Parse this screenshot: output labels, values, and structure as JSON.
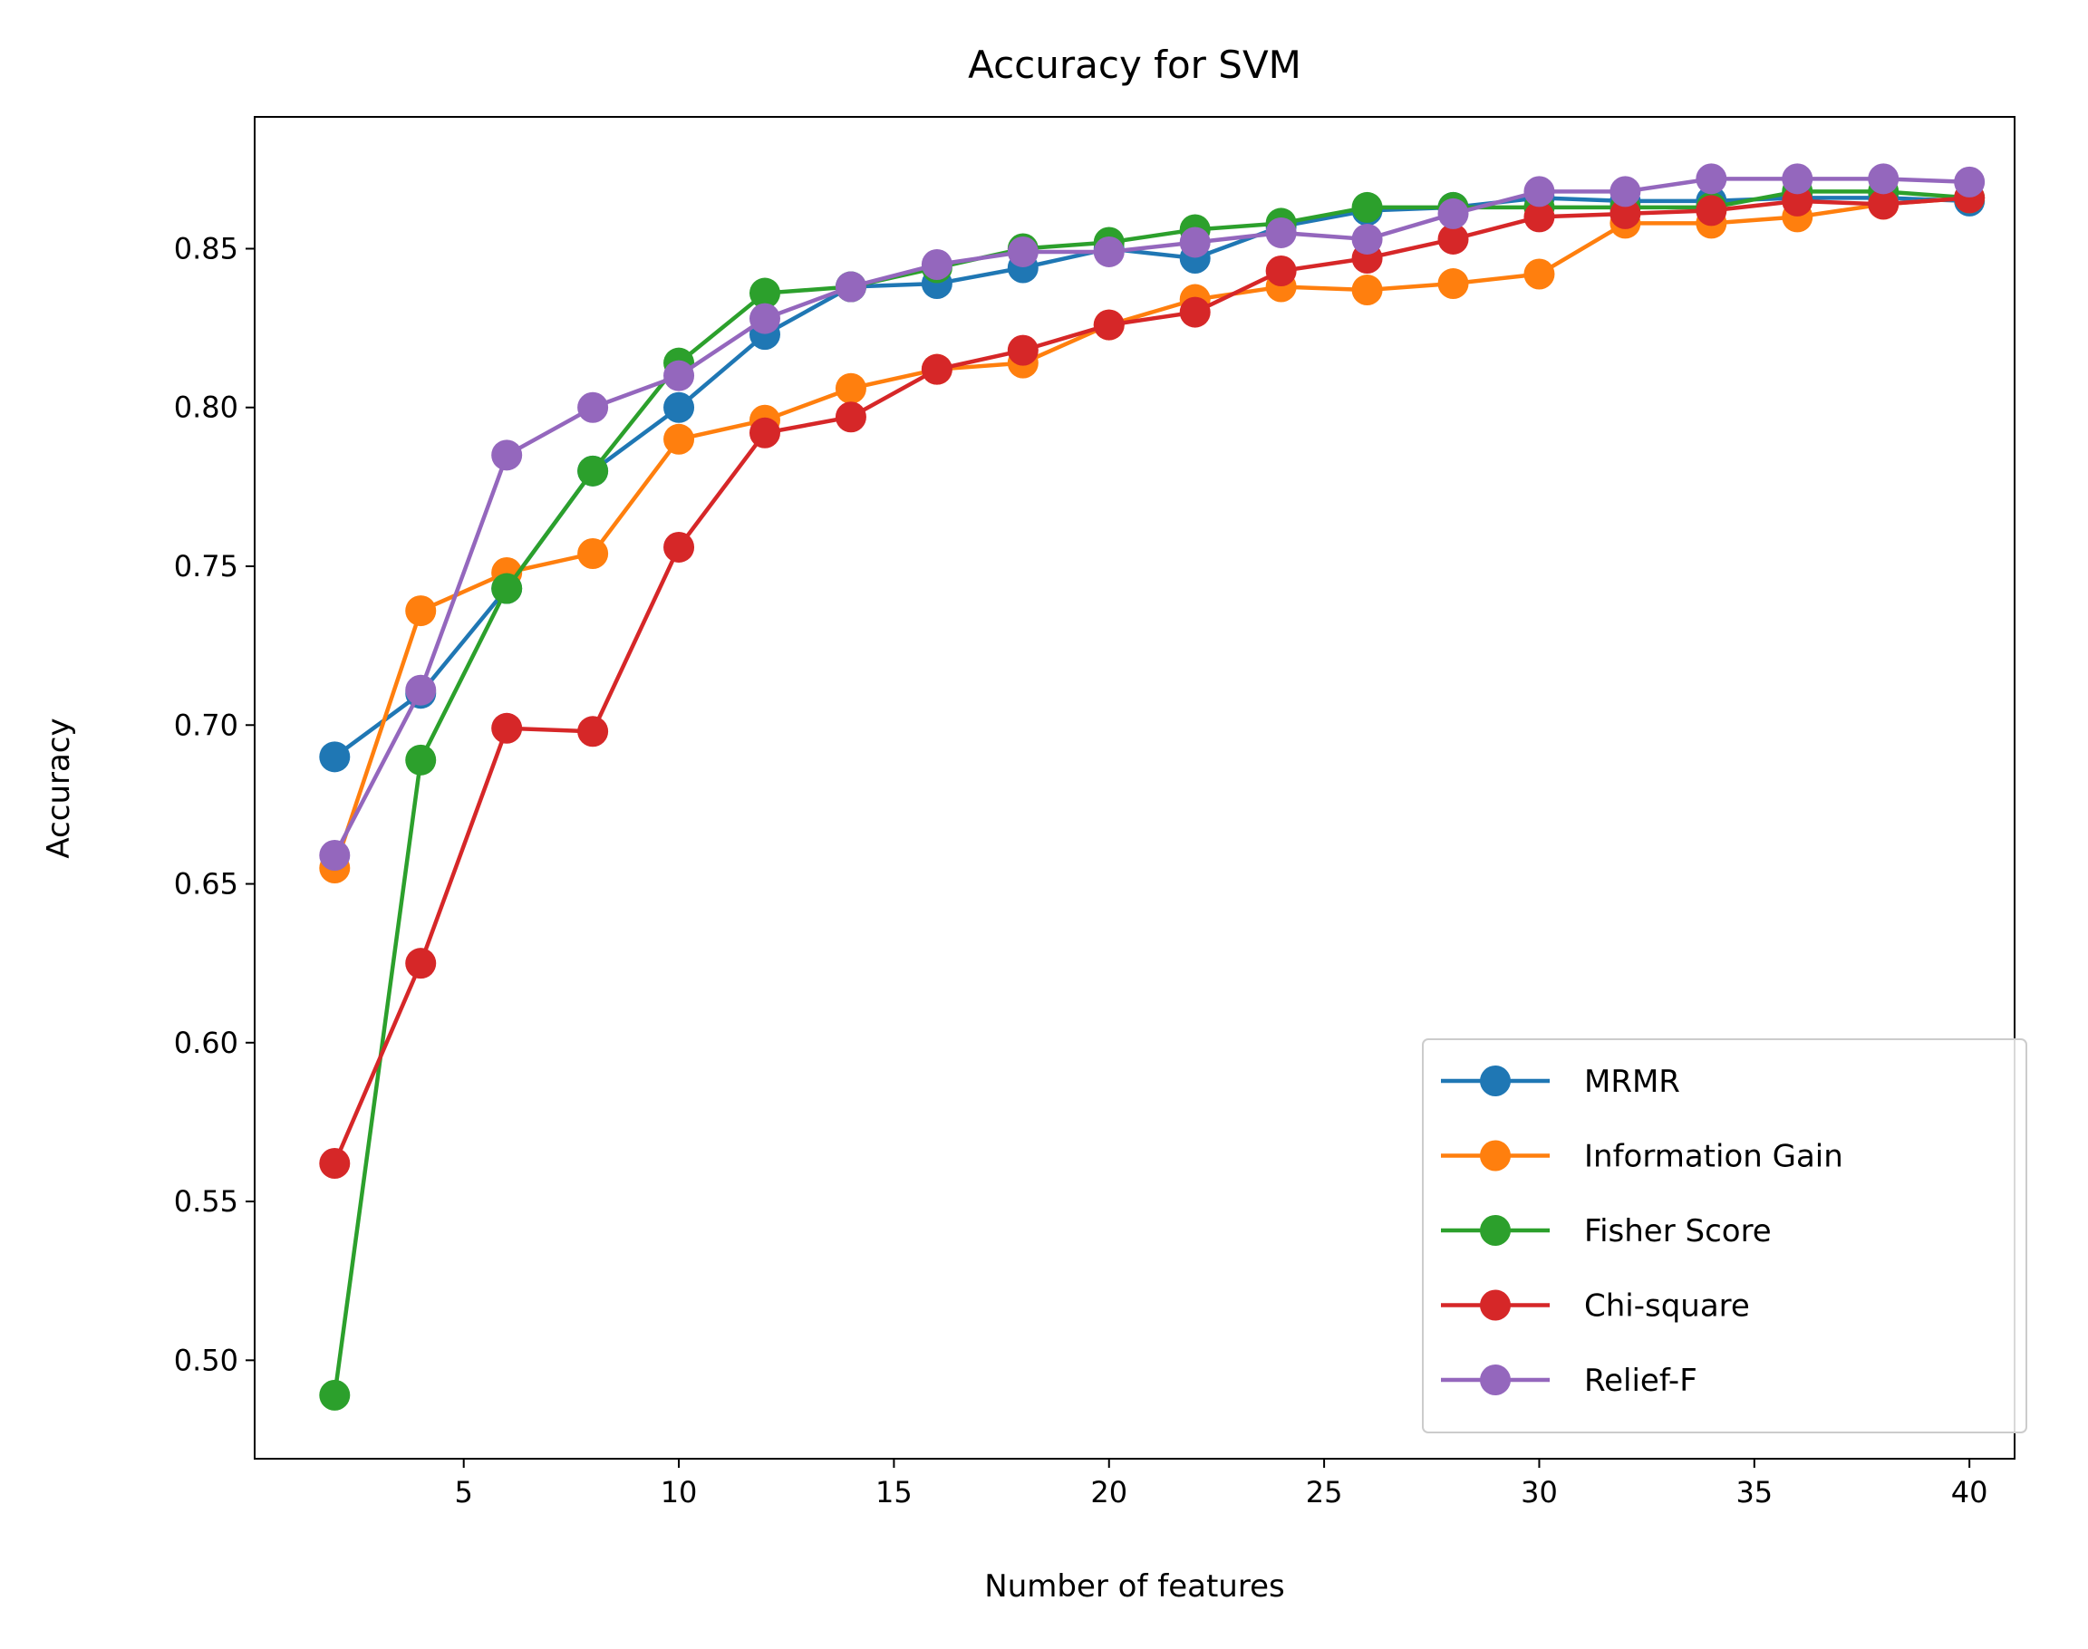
{
  "chart_data": {
    "type": "line",
    "title": "Accuracy for SVM",
    "xlabel": "Number of features",
    "ylabel": "Accuracy",
    "xlim": [
      0.14,
      41.05
    ],
    "ylim": [
      0.469,
      0.8915
    ],
    "xticks": [
      5,
      10,
      15,
      20,
      25,
      30,
      35,
      40
    ],
    "xtick_labels": [
      "5",
      "10",
      "15",
      "20",
      "25",
      "30",
      "35",
      "40"
    ],
    "yticks": [
      0.5,
      0.55,
      0.6,
      0.65,
      0.7,
      0.75,
      0.8,
      0.85
    ],
    "ytick_labels": [
      "0.50",
      "0.55",
      "0.60",
      "0.65",
      "0.70",
      "0.75",
      "0.80",
      "0.85"
    ],
    "grid": false,
    "legend_position": "lower-right",
    "x": [
      2,
      4,
      6,
      8,
      10,
      12,
      14,
      16,
      18,
      20,
      22,
      24,
      26,
      28,
      30,
      32,
      34,
      36,
      38,
      40
    ],
    "series": [
      {
        "name": "MRMR",
        "color": "#1f77b4",
        "values": [
          0.69,
          0.71,
          0.743,
          0.78,
          0.8,
          0.823,
          0.838,
          0.839,
          0.844,
          0.85,
          0.847,
          0.857,
          0.862,
          0.863,
          0.866,
          0.865,
          0.865,
          0.866,
          0.866,
          0.865
        ]
      },
      {
        "name": "Information Gain",
        "color": "#ff7f0e",
        "values": [
          0.655,
          0.736,
          0.748,
          0.754,
          0.79,
          0.796,
          0.806,
          0.812,
          0.814,
          0.826,
          0.834,
          0.838,
          0.837,
          0.839,
          0.842,
          0.858,
          0.858,
          0.86,
          0.864,
          0.866
        ]
      },
      {
        "name": "Fisher Score",
        "color": "#2ca02c",
        "values": [
          0.489,
          0.689,
          0.743,
          0.78,
          0.814,
          0.836,
          0.838,
          0.844,
          0.85,
          0.852,
          0.856,
          0.858,
          0.863,
          0.863,
          0.863,
          0.863,
          0.863,
          0.868,
          0.868,
          0.866
        ]
      },
      {
        "name": "Chi-square",
        "color": "#d62728",
        "values": [
          0.562,
          0.625,
          0.699,
          0.698,
          0.756,
          0.792,
          0.797,
          0.812,
          0.818,
          0.826,
          0.83,
          0.843,
          0.847,
          0.853,
          0.86,
          0.861,
          0.862,
          0.865,
          0.864,
          0.866
        ]
      },
      {
        "name": "Relief-F",
        "color": "#9467bd",
        "values": [
          0.659,
          0.711,
          0.785,
          0.8,
          0.81,
          0.828,
          0.838,
          0.845,
          0.849,
          0.849,
          0.852,
          0.855,
          0.853,
          0.861,
          0.868,
          0.868,
          0.872,
          0.872,
          0.872,
          0.871
        ]
      }
    ]
  }
}
